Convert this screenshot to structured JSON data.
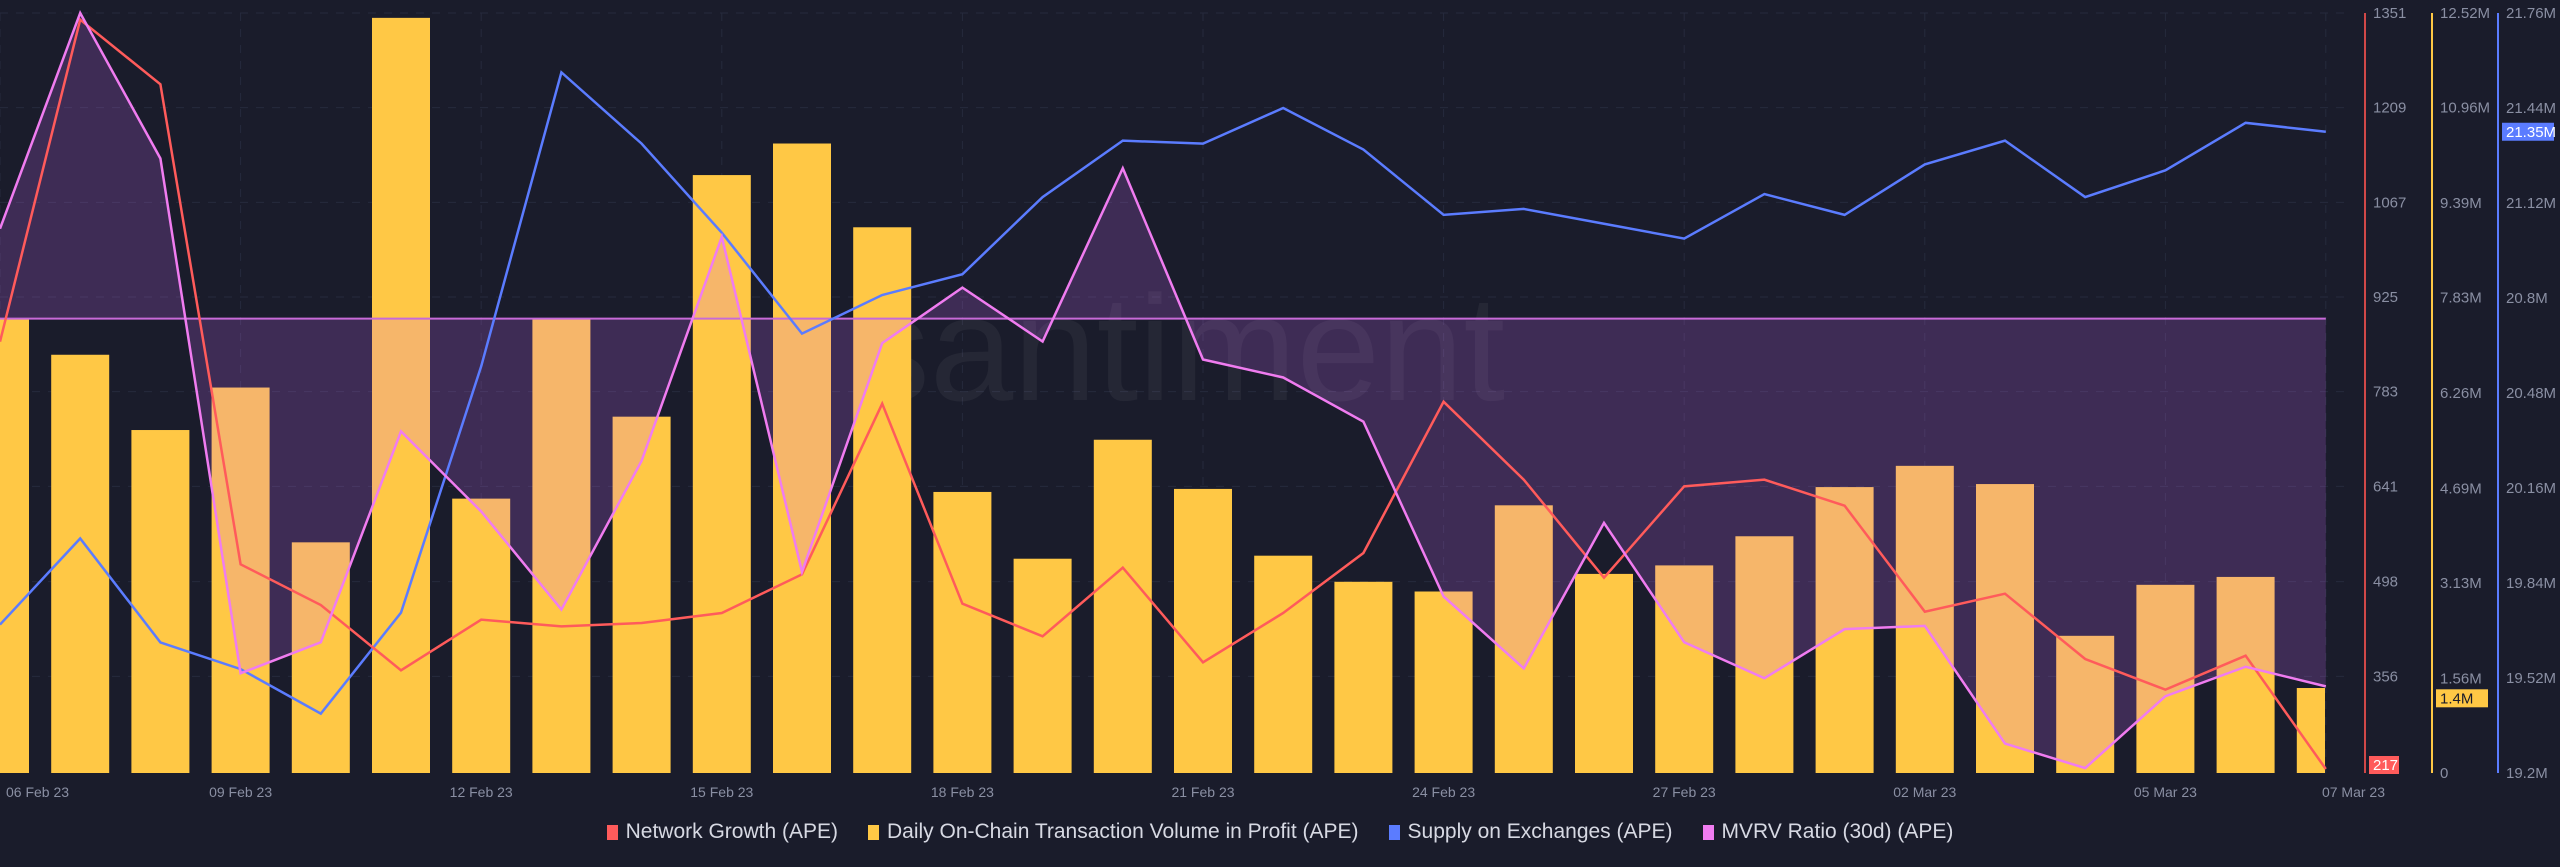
{
  "chart_data": {
    "type": "bar+line",
    "watermark": "santiment",
    "categories": [
      "06 Feb 23",
      "07 Feb 23",
      "08 Feb 23",
      "09 Feb 23",
      "10 Feb 23",
      "11 Feb 23",
      "12 Feb 23",
      "13 Feb 23",
      "14 Feb 23",
      "15 Feb 23",
      "16 Feb 23",
      "17 Feb 23",
      "18 Feb 23",
      "19 Feb 23",
      "20 Feb 23",
      "21 Feb 23",
      "22 Feb 23",
      "23 Feb 23",
      "24 Feb 23",
      "25 Feb 23",
      "26 Feb 23",
      "27 Feb 23",
      "28 Feb 23",
      "01 Mar 23",
      "02 Mar 23",
      "03 Mar 23",
      "04 Mar 23",
      "05 Mar 23",
      "06 Mar 23",
      "07 Mar 23"
    ],
    "x_tick_labels": [
      {
        "index": 0,
        "label": "06 Feb 23"
      },
      {
        "index": 3,
        "label": "09 Feb 23"
      },
      {
        "index": 6,
        "label": "12 Feb 23"
      },
      {
        "index": 9,
        "label": "15 Feb 23"
      },
      {
        "index": 12,
        "label": "18 Feb 23"
      },
      {
        "index": 15,
        "label": "21 Feb 23"
      },
      {
        "index": 18,
        "label": "24 Feb 23"
      },
      {
        "index": 21,
        "label": "27 Feb 23"
      },
      {
        "index": 24,
        "label": "02 Mar 23"
      },
      {
        "index": 27,
        "label": "05 Mar 23"
      },
      {
        "index": 29,
        "label": "07 Mar 23"
      }
    ],
    "grid": true,
    "legend_position": "bottom",
    "series": [
      {
        "name": "Network Growth (APE)",
        "kind": "line",
        "color": "#ff5b5b",
        "axis": {
          "min": 211,
          "max": 1351,
          "ticks": [
            "1351",
            "1209",
            "1067",
            "925",
            "783",
            "641",
            "498",
            "356"
          ],
          "tick_values": [
            1351,
            1209,
            1067,
            925,
            783,
            641,
            498,
            356
          ],
          "current_label": "217"
        },
        "values": [
          858,
          1341,
          1244,
          524,
          463,
          365,
          441,
          431,
          436,
          451,
          509,
          765,
          465,
          416,
          519,
          377,
          451,
          541,
          768,
          651,
          504,
          641,
          651,
          612,
          453,
          480,
          382,
          336,
          387,
          217
        ]
      },
      {
        "name": "Daily On-Chain Transaction Volume in Profit (APE)",
        "kind": "bar",
        "color": "#ffc845",
        "unit": "M",
        "axis": {
          "min": 0,
          "max": 12.52,
          "ticks": [
            "12.52M",
            "10.96M",
            "9.39M",
            "7.83M",
            "6.26M",
            "4.69M",
            "3.13M",
            "1.56M",
            "0"
          ],
          "tick_values": [
            12.52,
            10.96,
            9.39,
            7.83,
            6.26,
            4.69,
            3.13,
            1.56,
            0
          ],
          "current_label": "1.4M"
        },
        "values": [
          7.49,
          6.89,
          5.65,
          6.35,
          3.8,
          12.44,
          4.52,
          7.49,
          5.87,
          9.85,
          10.37,
          8.99,
          4.63,
          3.53,
          5.49,
          4.68,
          3.58,
          3.15,
          2.99,
          4.41,
          3.28,
          3.42,
          3.9,
          4.71,
          5.06,
          4.76,
          2.26,
          3.1,
          3.23,
          1.4
        ]
      },
      {
        "name": "Supply on Exchanges (APE)",
        "kind": "line",
        "color": "#5b7cff",
        "unit": "M",
        "axis": {
          "min": 19.2,
          "max": 21.76,
          "ticks": [
            "21.76M",
            "21.44M",
            "21.12M",
            "20.8M",
            "20.48M",
            "20.16M",
            "19.84M",
            "19.52M",
            "19.2M"
          ],
          "tick_values": [
            21.76,
            21.44,
            21.12,
            20.8,
            20.48,
            20.16,
            19.84,
            19.52,
            19.2
          ],
          "current_label": "21.35M"
        },
        "values": [
          19.7,
          19.99,
          19.64,
          19.55,
          19.4,
          19.74,
          20.57,
          21.56,
          21.32,
          21.02,
          20.68,
          20.81,
          20.88,
          21.14,
          21.33,
          21.32,
          21.44,
          21.3,
          21.08,
          21.1,
          21.05,
          21.0,
          21.15,
          21.08,
          21.25,
          21.33,
          21.14,
          21.23,
          21.39,
          21.36
        ]
      },
      {
        "name": "MVRV Ratio (30d) (APE)",
        "kind": "line-area-baseline",
        "color": "#f07cf0",
        "axis": {
          "min": -0.278,
          "max": 0.187,
          "baseline": 0,
          "hidden": true
        },
        "values": [
          0.055,
          0.187,
          0.098,
          -0.217,
          -0.198,
          -0.069,
          -0.118,
          -0.178,
          -0.087,
          0.05,
          -0.155,
          -0.015,
          0.019,
          -0.014,
          0.092,
          -0.025,
          -0.036,
          -0.063,
          -0.17,
          -0.214,
          -0.125,
          -0.198,
          -0.22,
          -0.19,
          -0.188,
          -0.26,
          -0.275,
          -0.231,
          -0.213,
          -0.225
        ]
      }
    ]
  },
  "legend": [
    {
      "label": "Network Growth (APE)",
      "color": "#ff5b5b"
    },
    {
      "label": "Daily On-Chain Transaction Volume in Profit (APE)",
      "color": "#ffc845"
    },
    {
      "label": "Supply on Exchanges (APE)",
      "color": "#5b7cff"
    },
    {
      "label": "MVRV Ratio (30d) (APE)",
      "color": "#f07cf0"
    }
  ]
}
